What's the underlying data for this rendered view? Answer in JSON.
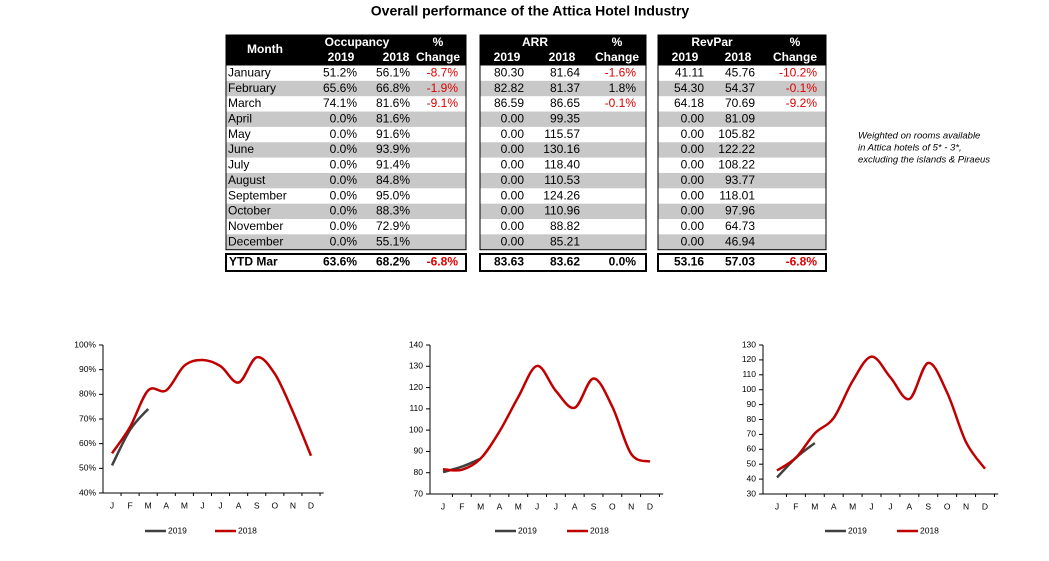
{
  "title": "Overall performance of the Attica Hotel Industry",
  "month_header": "Month",
  "months": [
    "January",
    "February",
    "March",
    "April",
    "May",
    "June",
    "July",
    "August",
    "September",
    "October",
    "November",
    "December"
  ],
  "ytd_label": "YTD Mar",
  "tables": [
    {
      "title": "Occupancy",
      "pct_label": "%",
      "columns": [
        "2019",
        "2018",
        "Change"
      ],
      "rows": [
        [
          "51.2%",
          "56.1%",
          "-8.7%"
        ],
        [
          "65.6%",
          "66.8%",
          "-1.9%"
        ],
        [
          "74.1%",
          "81.6%",
          "-9.1%"
        ],
        [
          "0.0%",
          "81.6%"
        ],
        [
          "0.0%",
          "91.6%"
        ],
        [
          "0.0%",
          "93.9%"
        ],
        [
          "0.0%",
          "91.4%"
        ],
        [
          "0.0%",
          "84.8%"
        ],
        [
          "0.0%",
          "95.0%"
        ],
        [
          "0.0%",
          "88.3%"
        ],
        [
          "0.0%",
          "72.9%"
        ],
        [
          "0.0%",
          "55.1%"
        ]
      ],
      "ytd": [
        "63.6%",
        "68.2%",
        "-6.8%"
      ]
    },
    {
      "title": "ARR",
      "pct_label": "%",
      "columns": [
        "2019",
        "2018",
        "Change"
      ],
      "rows": [
        [
          "80.30",
          "81.64",
          "-1.6%"
        ],
        [
          "82.82",
          "81.37",
          "1.8%"
        ],
        [
          "86.59",
          "86.65",
          "-0.1%"
        ],
        [
          "0.00",
          "99.35"
        ],
        [
          "0.00",
          "115.57"
        ],
        [
          "0.00",
          "130.16"
        ],
        [
          "0.00",
          "118.40"
        ],
        [
          "0.00",
          "110.53"
        ],
        [
          "0.00",
          "124.26"
        ],
        [
          "0.00",
          "110.96"
        ],
        [
          "0.00",
          "88.82"
        ],
        [
          "0.00",
          "85.21"
        ]
      ],
      "ytd": [
        "83.63",
        "83.62",
        "0.0%"
      ]
    },
    {
      "title": "RevPar",
      "pct_label": "%",
      "columns": [
        "2019",
        "2018",
        "Change"
      ],
      "rows": [
        [
          "41.11",
          "45.76",
          "-10.2%"
        ],
        [
          "54.30",
          "54.37",
          "-0.1%"
        ],
        [
          "64.18",
          "70.69",
          "-9.2%"
        ],
        [
          "0.00",
          "81.09"
        ],
        [
          "0.00",
          "105.82"
        ],
        [
          "0.00",
          "122.22"
        ],
        [
          "0.00",
          "108.22"
        ],
        [
          "0.00",
          "93.77"
        ],
        [
          "0.00",
          "118.01"
        ],
        [
          "0.00",
          "97.96"
        ],
        [
          "0.00",
          "64.73"
        ],
        [
          "0.00",
          "46.94"
        ]
      ],
      "ytd": [
        "53.16",
        "57.03",
        "-6.8%"
      ]
    }
  ],
  "note": [
    "Weighted on rooms available",
    "in Attica hotels of 5* - 3*,",
    "excluding the islands & Piraeus"
  ],
  "chart_data": [
    {
      "type": "line",
      "categories": [
        "J",
        "F",
        "M",
        "A",
        "M",
        "J",
        "J",
        "A",
        "S",
        "O",
        "N",
        "D"
      ],
      "ylim": [
        40,
        100
      ],
      "yticks": [
        {
          "value": 40,
          "label": "40%"
        },
        {
          "value": 50,
          "label": "50%"
        },
        {
          "value": 60,
          "label": "60%"
        },
        {
          "value": 70,
          "label": "70%"
        },
        {
          "value": 80,
          "label": "80%"
        },
        {
          "value": 90,
          "label": "90%"
        },
        {
          "value": 100,
          "label": "100%"
        }
      ],
      "series": [
        {
          "name": "2019",
          "color": "#404040",
          "values": [
            51.2,
            65.6,
            74.1,
            null,
            null,
            null,
            null,
            null,
            null,
            null,
            null,
            null
          ]
        },
        {
          "name": "2018",
          "color": "#c00000",
          "values": [
            56.1,
            66.8,
            81.6,
            81.6,
            91.6,
            93.9,
            91.4,
            84.8,
            95.0,
            88.3,
            72.9,
            55.1
          ]
        }
      ]
    },
    {
      "type": "line",
      "categories": [
        "J",
        "F",
        "M",
        "A",
        "M",
        "J",
        "J",
        "A",
        "S",
        "O",
        "N",
        "D"
      ],
      "ylim": [
        70,
        140
      ],
      "yticks": [
        70,
        80,
        90,
        100,
        110,
        120,
        130,
        140
      ],
      "series": [
        {
          "name": "2019",
          "color": "#404040",
          "values": [
            80.3,
            82.82,
            86.59,
            null,
            null,
            null,
            null,
            null,
            null,
            null,
            null,
            null
          ]
        },
        {
          "name": "2018",
          "color": "#c00000",
          "values": [
            81.64,
            81.37,
            86.65,
            99.35,
            115.57,
            130.16,
            118.4,
            110.53,
            124.26,
            110.96,
            88.82,
            85.21
          ]
        }
      ]
    },
    {
      "type": "line",
      "categories": [
        "J",
        "F",
        "M",
        "A",
        "M",
        "J",
        "J",
        "A",
        "S",
        "O",
        "N",
        "D"
      ],
      "ylim": [
        30,
        130
      ],
      "yticks": [
        30,
        40,
        50,
        60,
        70,
        80,
        90,
        100,
        110,
        120,
        130
      ],
      "series": [
        {
          "name": "2019",
          "color": "#404040",
          "values": [
            41.11,
            54.3,
            64.18,
            null,
            null,
            null,
            null,
            null,
            null,
            null,
            null,
            null
          ]
        },
        {
          "name": "2018",
          "color": "#c00000",
          "values": [
            45.76,
            54.37,
            70.69,
            81.09,
            105.82,
            122.22,
            108.22,
            93.77,
            118.01,
            97.96,
            64.73,
            46.94
          ]
        }
      ]
    }
  ]
}
